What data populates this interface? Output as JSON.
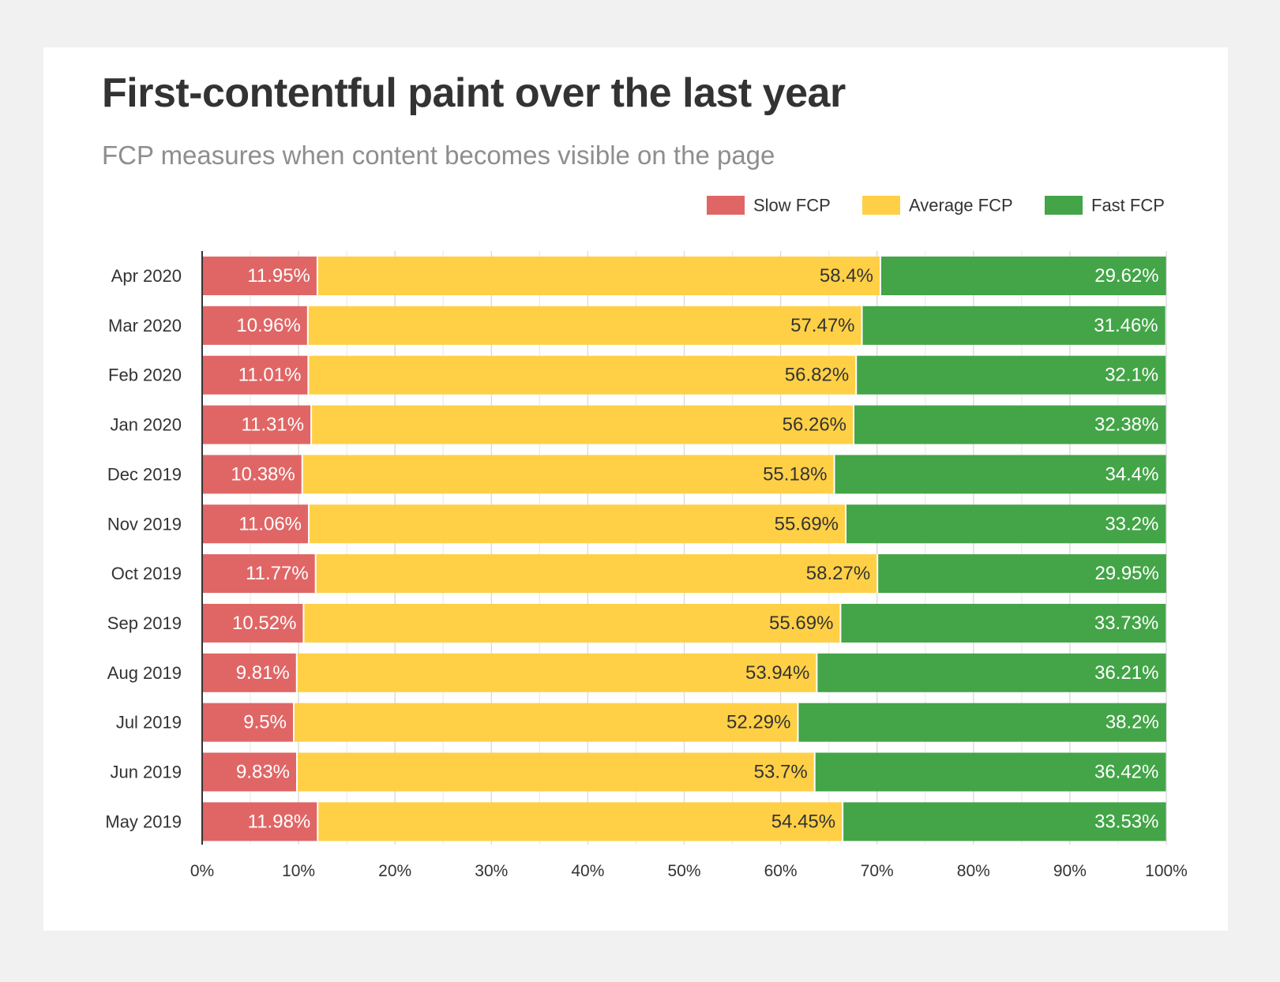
{
  "title": "First-contentful paint over the last year",
  "subtitle": "FCP measures when content becomes visible on the page",
  "chart_data": {
    "type": "bar",
    "orientation": "horizontal",
    "stacked": true,
    "title": "First-contentful paint over the last year",
    "subtitle": "FCP measures when content becomes visible on the page",
    "legend_position": "top-right",
    "grid": true,
    "xlim": [
      0,
      100
    ],
    "x_ticks": [
      "0%",
      "10%",
      "20%",
      "30%",
      "40%",
      "50%",
      "60%",
      "70%",
      "80%",
      "90%",
      "100%"
    ],
    "categories": [
      "Apr 2020",
      "Mar 2020",
      "Feb 2020",
      "Jan 2020",
      "Dec 2019",
      "Nov 2019",
      "Oct 2019",
      "Sep 2019",
      "Aug 2019",
      "Jul 2019",
      "Jun 2019",
      "May 2019"
    ],
    "series": [
      {
        "name": "Slow FCP",
        "color": "#e06666",
        "values": [
          11.95,
          10.96,
          11.01,
          11.31,
          10.38,
          11.06,
          11.77,
          10.52,
          9.81,
          9.5,
          9.83,
          11.98
        ]
      },
      {
        "name": "Average FCP",
        "color": "#ffd046",
        "values": [
          58.4,
          57.47,
          56.82,
          56.26,
          55.18,
          55.69,
          58.27,
          55.69,
          53.94,
          52.29,
          53.7,
          54.45
        ]
      },
      {
        "name": "Fast FCP",
        "color": "#43a547",
        "values": [
          29.62,
          31.46,
          32.1,
          32.38,
          34.4,
          33.2,
          29.95,
          33.73,
          36.21,
          38.2,
          36.42,
          33.53
        ]
      }
    ]
  }
}
